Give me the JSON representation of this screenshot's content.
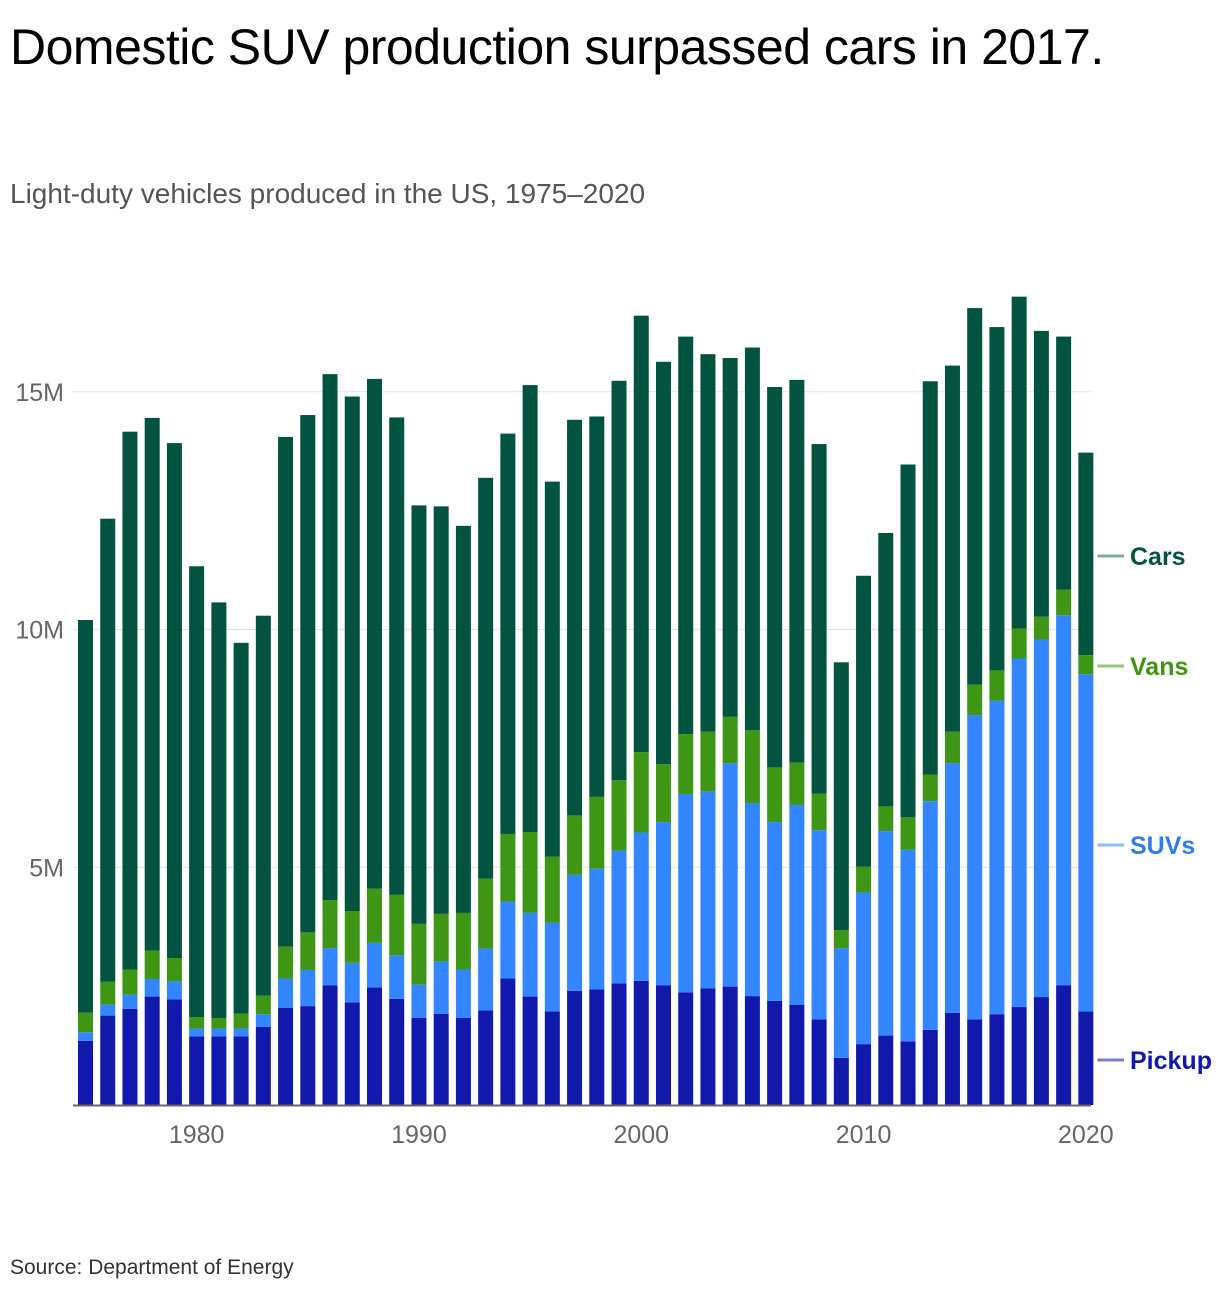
{
  "title": "Domestic SUV production surpassed cars in 2017.",
  "subtitle": "Light-duty vehicles produced in the US, 1975–2020",
  "source": "Source: Department of Energy",
  "chart_data": {
    "type": "bar",
    "stacked": true,
    "title": "Domestic SUV production surpassed cars in 2017.",
    "subtitle": "Light-duty vehicles produced in the US, 1975–2020",
    "xlabel": "",
    "ylabel": "",
    "ylim": [
      0,
      17000000
    ],
    "yticks": [
      5000000,
      10000000,
      15000000
    ],
    "ytick_labels": [
      "5M",
      "10M",
      "15M"
    ],
    "xticks": [
      1980,
      1990,
      2000,
      2010,
      2020
    ],
    "xtick_labels": [
      "1980",
      "1990",
      "2000",
      "2010",
      "2020"
    ],
    "grid": true,
    "legend": "right, direct labels",
    "categories": [
      1975,
      1976,
      1977,
      1978,
      1979,
      1980,
      1981,
      1982,
      1983,
      1984,
      1985,
      1986,
      1987,
      1988,
      1989,
      1990,
      1991,
      1992,
      1993,
      1994,
      1995,
      1996,
      1997,
      1998,
      1999,
      2000,
      2001,
      2002,
      2003,
      2004,
      2005,
      2006,
      2007,
      2008,
      2009,
      2010,
      2011,
      2012,
      2013,
      2014,
      2015,
      2016,
      2017,
      2018,
      2019,
      2020
    ],
    "series": [
      {
        "name": "Pickup",
        "color": "#1119ad",
        "values": [
          1350000,
          1880000,
          2020000,
          2280000,
          2220000,
          1440000,
          1440000,
          1440000,
          1640000,
          2040000,
          2080000,
          2520000,
          2160000,
          2470000,
          2230000,
          1830000,
          1920000,
          1830000,
          1990000,
          2660000,
          2280000,
          1970000,
          2400000,
          2430000,
          2560000,
          2610000,
          2520000,
          2370000,
          2450000,
          2490000,
          2290000,
          2190000,
          2110000,
          1800000,
          990000,
          1280000,
          1460000,
          1340000,
          1580000,
          1940000,
          1800000,
          1910000,
          2060000,
          2270000,
          2520000,
          1970000
        ]
      },
      {
        "name": "SUVs",
        "color": "#3386ff",
        "values": [
          180000,
          230000,
          300000,
          370000,
          380000,
          170000,
          170000,
          170000,
          270000,
          620000,
          760000,
          780000,
          830000,
          940000,
          920000,
          700000,
          1100000,
          1020000,
          1300000,
          1620000,
          1760000,
          1860000,
          2440000,
          2540000,
          2790000,
          3120000,
          3430000,
          4170000,
          4140000,
          4700000,
          4060000,
          3760000,
          4200000,
          3980000,
          2310000,
          3190000,
          4300000,
          4030000,
          4810000,
          5250000,
          6400000,
          6590000,
          7330000,
          7520000,
          7780000,
          7090000
        ]
      },
      {
        "name": "Vans",
        "color": "#3e9614",
        "values": [
          410000,
          480000,
          530000,
          600000,
          490000,
          240000,
          220000,
          310000,
          390000,
          670000,
          790000,
          1010000,
          1090000,
          1140000,
          1270000,
          1280000,
          1000000,
          1190000,
          1470000,
          1420000,
          1700000,
          1390000,
          1250000,
          1510000,
          1480000,
          1690000,
          1220000,
          1260000,
          1260000,
          980000,
          1530000,
          1150000,
          890000,
          770000,
          380000,
          540000,
          520000,
          680000,
          560000,
          660000,
          640000,
          640000,
          630000,
          480000,
          540000,
          400000
        ]
      },
      {
        "name": "Cars",
        "color": "#02533f",
        "values": [
          8260000,
          9740000,
          11310000,
          11200000,
          10830000,
          9480000,
          8740000,
          7800000,
          7990000,
          10720000,
          10880000,
          11060000,
          10820000,
          10720000,
          10040000,
          8800000,
          8570000,
          8140000,
          8430000,
          8420000,
          9400000,
          7890000,
          8320000,
          8000000,
          8400000,
          9180000,
          8460000,
          8360000,
          7940000,
          7540000,
          8050000,
          8000000,
          8050000,
          7350000,
          5630000,
          6120000,
          5750000,
          7420000,
          8270000,
          7700000,
          7920000,
          7220000,
          6980000,
          6010000,
          5320000,
          4260000
        ]
      }
    ]
  }
}
